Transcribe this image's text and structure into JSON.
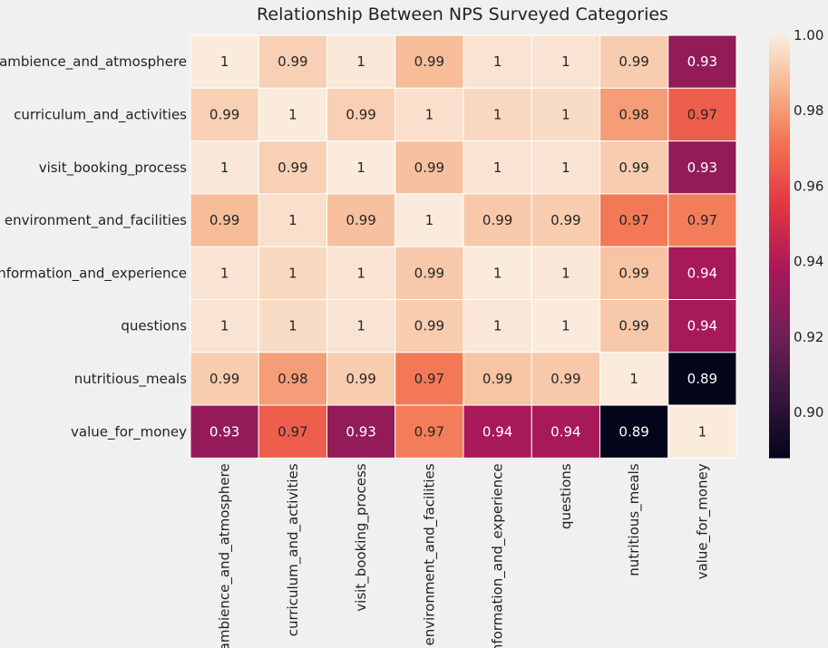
{
  "chart_data": {
    "type": "heatmap",
    "title": "Relationship Between NPS Surveyed Categories",
    "rows": [
      "ambience_and_atmosphere",
      "curriculum_and_activities",
      "visit_booking_process",
      "environment_and_facilities",
      "information_and_experience",
      "questions",
      "nutritious_meals",
      "value_for_money"
    ],
    "columns": [
      "ambience_and_atmosphere",
      "curriculum_and_activities",
      "visit_booking_process",
      "environment_and_facilities",
      "information_and_experience",
      "questions",
      "nutritious_meals",
      "value_for_money"
    ],
    "values": [
      [
        1.0,
        0.993,
        0.999,
        0.988,
        0.998,
        0.998,
        0.992,
        0.931
      ],
      [
        0.993,
        1.0,
        0.993,
        0.997,
        0.995,
        0.996,
        0.981,
        0.966
      ],
      [
        0.999,
        0.993,
        1.0,
        0.989,
        0.998,
        0.998,
        0.992,
        0.931
      ],
      [
        0.988,
        0.997,
        0.989,
        1.0,
        0.991,
        0.992,
        0.973,
        0.974
      ],
      [
        0.998,
        0.995,
        0.998,
        0.991,
        1.0,
        0.999,
        0.99,
        0.937
      ],
      [
        0.998,
        0.996,
        0.998,
        0.992,
        0.999,
        1.0,
        0.991,
        0.937
      ],
      [
        0.992,
        0.981,
        0.992,
        0.973,
        0.99,
        0.991,
        1.0,
        0.888
      ],
      [
        0.931,
        0.966,
        0.931,
        0.974,
        0.937,
        0.937,
        0.888,
        1.0
      ]
    ],
    "labels": [
      [
        "1",
        "0.99",
        "1",
        "0.99",
        "1",
        "1",
        "0.99",
        "0.93"
      ],
      [
        "0.99",
        "1",
        "0.99",
        "1",
        "1",
        "1",
        "0.98",
        "0.97"
      ],
      [
        "1",
        "0.99",
        "1",
        "0.99",
        "1",
        "1",
        "0.99",
        "0.93"
      ],
      [
        "0.99",
        "1",
        "0.99",
        "1",
        "0.99",
        "0.99",
        "0.97",
        "0.97"
      ],
      [
        "1",
        "1",
        "1",
        "0.99",
        "1",
        "1",
        "0.99",
        "0.94"
      ],
      [
        "1",
        "1",
        "1",
        "0.99",
        "1",
        "1",
        "0.99",
        "0.94"
      ],
      [
        "0.99",
        "0.98",
        "0.99",
        "0.97",
        "0.99",
        "0.99",
        "1",
        "0.89"
      ],
      [
        "0.93",
        "0.97",
        "0.93",
        "0.97",
        "0.94",
        "0.94",
        "0.89",
        "1"
      ]
    ],
    "colorbar": {
      "min": 0.888,
      "max": 1.0,
      "ticks": [
        0.9,
        0.92,
        0.94,
        0.96,
        0.98,
        1.0
      ],
      "tick_labels": [
        "0.90",
        "0.92",
        "0.94",
        "0.96",
        "0.98",
        "1.00"
      ],
      "colormap": "rocket"
    },
    "grid": false
  }
}
